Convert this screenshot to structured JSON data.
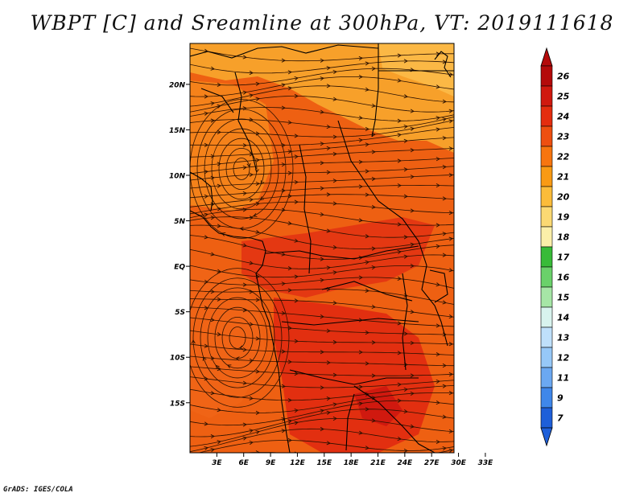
{
  "title": "WBPT [C] and Sreamline at 300hPa, VT: 2019111618",
  "credit": "GrADS: IGES/COLA",
  "map": {
    "lat_range": [
      -20.5,
      24.5
    ],
    "lon_range": [
      0,
      29.5
    ],
    "lat_ticks": [
      {
        "value": 20,
        "label": "20N"
      },
      {
        "value": 15,
        "label": "15N"
      },
      {
        "value": 10,
        "label": "10N"
      },
      {
        "value": 5,
        "label": "5N"
      },
      {
        "value": 0,
        "label": "EQ"
      },
      {
        "value": -5,
        "label": "5S"
      },
      {
        "value": -10,
        "label": "10S"
      },
      {
        "value": -15,
        "label": "15S"
      }
    ],
    "lon_ticks": [
      {
        "value": 3,
        "label": "3E"
      },
      {
        "value": 6,
        "label": "6E"
      },
      {
        "value": 9,
        "label": "9E"
      },
      {
        "value": 12,
        "label": "12E"
      },
      {
        "value": 15,
        "label": "15E"
      },
      {
        "value": 18,
        "label": "18E"
      },
      {
        "value": 21,
        "label": "21E"
      },
      {
        "value": 24,
        "label": "24E"
      },
      {
        "value": 27,
        "label": "27E"
      },
      {
        "value": 30,
        "label": "30E"
      },
      {
        "value": 33,
        "label": "33E"
      }
    ]
  },
  "colorbar": {
    "labels": [
      "26",
      "25",
      "24",
      "23",
      "22",
      "21",
      "20",
      "19",
      "18",
      "17",
      "16",
      "15",
      "14",
      "13",
      "12",
      "11",
      "9",
      "7"
    ],
    "colors": [
      "#b40a0a",
      "#d0190f",
      "#e42d0f",
      "#ee4f10",
      "#f7750f",
      "#f99a14",
      "#fbbc3a",
      "#fbd973",
      "#fbefa9",
      "#38bb38",
      "#6ad16a",
      "#a6e6a6",
      "#d8f3ee",
      "#bfe0fb",
      "#96c8f8",
      "#6ba8f2",
      "#3f87ea",
      "#1e5fd9"
    ]
  }
}
